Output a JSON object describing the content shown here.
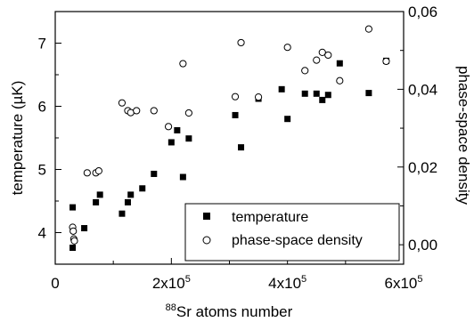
{
  "chart_data": {
    "type": "scatter",
    "xlabel_sup": "88",
    "xlabel_main": "Sr atoms number",
    "ylabel_left": "temperature (µK)",
    "ylabel_right": "phase-space density",
    "xlim": [
      0,
      600000
    ],
    "ylim_left": [
      3.5,
      7.5
    ],
    "ylim_right": [
      -0.005,
      0.06
    ],
    "x_ticks": [
      {
        "value": 0,
        "base": "0",
        "exp": ""
      },
      {
        "value": 200000,
        "base": "2x10",
        "exp": "5"
      },
      {
        "value": 400000,
        "base": "4x10",
        "exp": "5"
      },
      {
        "value": 600000,
        "base": "6x10",
        "exp": "5"
      }
    ],
    "y_left_ticks": [
      {
        "value": 4,
        "label": "4"
      },
      {
        "value": 5,
        "label": "5"
      },
      {
        "value": 6,
        "label": "6"
      },
      {
        "value": 7,
        "label": "7"
      }
    ],
    "y_right_ticks": [
      {
        "value": 0.0,
        "label": "0,00"
      },
      {
        "value": 0.02,
        "label": "0,02"
      },
      {
        "value": 0.04,
        "label": "0,04"
      },
      {
        "value": 0.06,
        "label": "0,06"
      }
    ],
    "legend_position": "bottom-right",
    "series": [
      {
        "name": "temperature",
        "marker": "filled-square",
        "axis": "left",
        "points": [
          [
            30000,
            4.4
          ],
          [
            30000,
            3.76
          ],
          [
            50000,
            4.07
          ],
          [
            70000,
            4.48
          ],
          [
            77000,
            4.6
          ],
          [
            115000,
            4.3
          ],
          [
            125000,
            4.48
          ],
          [
            130000,
            4.6
          ],
          [
            150000,
            4.7
          ],
          [
            170000,
            4.93
          ],
          [
            200000,
            5.43
          ],
          [
            210000,
            5.62
          ],
          [
            220000,
            4.88
          ],
          [
            230000,
            5.49
          ],
          [
            310000,
            5.86
          ],
          [
            320000,
            5.35
          ],
          [
            350000,
            6.12
          ],
          [
            390000,
            6.27
          ],
          [
            400000,
            5.8
          ],
          [
            430000,
            6.2
          ],
          [
            450000,
            6.2
          ],
          [
            460000,
            6.1
          ],
          [
            470000,
            6.18
          ],
          [
            490000,
            6.68
          ],
          [
            540000,
            6.21
          ],
          [
            570000,
            6.72
          ]
        ]
      },
      {
        "name": "phase-space density",
        "marker": "open-circle",
        "axis": "right",
        "points": [
          [
            30000,
            0.0045
          ],
          [
            31000,
            0.0035
          ],
          [
            32000,
            0.0015
          ],
          [
            33000,
            0.001
          ],
          [
            55000,
            0.0185
          ],
          [
            70000,
            0.0185
          ],
          [
            75000,
            0.019
          ],
          [
            115000,
            0.0365
          ],
          [
            125000,
            0.0345
          ],
          [
            130000,
            0.034
          ],
          [
            140000,
            0.0345
          ],
          [
            170000,
            0.0345
          ],
          [
            195000,
            0.0304
          ],
          [
            220000,
            0.0466
          ],
          [
            230000,
            0.0339
          ],
          [
            310000,
            0.0381
          ],
          [
            320000,
            0.052
          ],
          [
            350000,
            0.038
          ],
          [
            400000,
            0.0508
          ],
          [
            430000,
            0.0448
          ],
          [
            450000,
            0.0475
          ],
          [
            460000,
            0.0495
          ],
          [
            470000,
            0.0488
          ],
          [
            490000,
            0.0422
          ],
          [
            540000,
            0.0555
          ],
          [
            570000,
            0.0472
          ]
        ]
      }
    ]
  }
}
